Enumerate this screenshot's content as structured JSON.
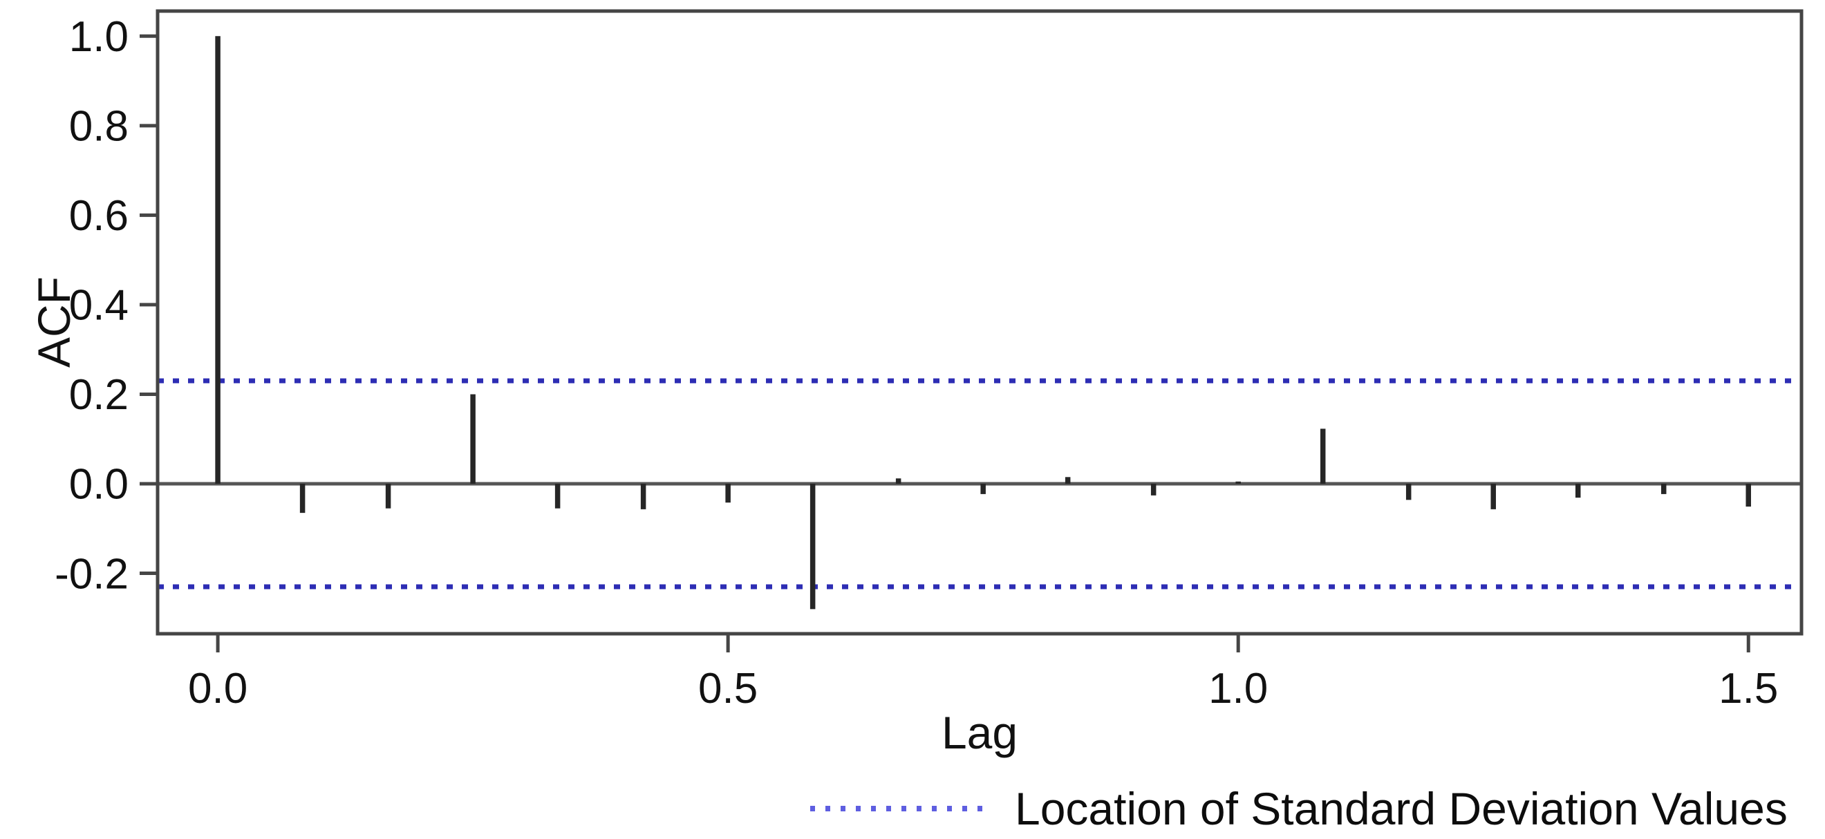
{
  "figure": {
    "ylabel": "ACF",
    "xlabel": "Lag",
    "legend_label": "Location of Standard Deviation Values"
  },
  "chart_data": {
    "type": "bar",
    "subtype": "stem-acf",
    "title": "",
    "xlabel": "Lag",
    "ylabel": "ACF",
    "x": [
      0.0,
      0.083,
      0.167,
      0.25,
      0.333,
      0.417,
      0.5,
      0.583,
      0.667,
      0.75,
      0.833,
      0.917,
      1.0,
      1.083,
      1.167,
      1.25,
      1.333,
      1.417,
      1.5
    ],
    "values": [
      1.0,
      -0.065,
      -0.055,
      0.2,
      -0.055,
      -0.057,
      -0.042,
      -0.28,
      0.012,
      -0.023,
      0.015,
      -0.026,
      0.005,
      0.123,
      -0.036,
      -0.057,
      -0.031,
      -0.023,
      -0.051
    ],
    "sd_lines": [
      0.23,
      -0.23
    ],
    "xticks": {
      "values": [
        0.0,
        0.5,
        1.0,
        1.5
      ],
      "labels": [
        "0.0",
        "0.5",
        "1.0",
        "1.5"
      ]
    },
    "yticks": {
      "values": [
        1.0,
        0.8,
        0.6,
        0.4,
        0.2,
        0.0,
        -0.2
      ],
      "labels": [
        "1.0",
        "0.8",
        "0.6",
        "0.4",
        "0.2",
        "0.0",
        "-0.2"
      ]
    },
    "xlim": [
      -0.059,
      1.552
    ],
    "ylim": [
      -0.335,
      1.056
    ],
    "grid": false,
    "legend": {
      "label": "Location of Standard Deviation Values",
      "position": "bottom-right",
      "line_style": "dotted"
    },
    "colors": {
      "spike": "#262626",
      "axis_box": "#454545",
      "zero_line": "#555555",
      "sd_line": "#2d2db4",
      "legend_line": "#5e5ee0",
      "tick_text": "#111111"
    }
  }
}
